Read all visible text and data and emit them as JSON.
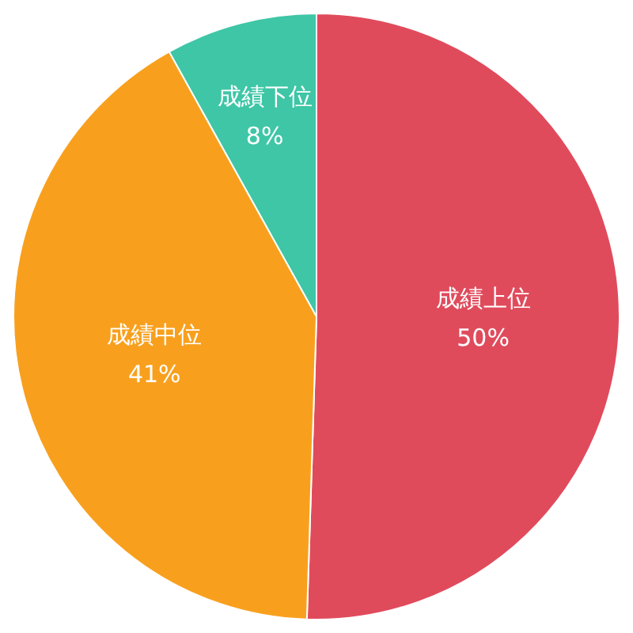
{
  "chart_data": {
    "type": "pie",
    "categories": [
      "成績上位",
      "成績中位",
      "成績下位"
    ],
    "values": [
      50,
      41,
      8
    ],
    "colors": [
      "#e04b5c",
      "#f8a01e",
      "#3ec6a6"
    ],
    "value_labels": [
      "50%",
      "41%",
      "8%"
    ],
    "legend": false
  }
}
